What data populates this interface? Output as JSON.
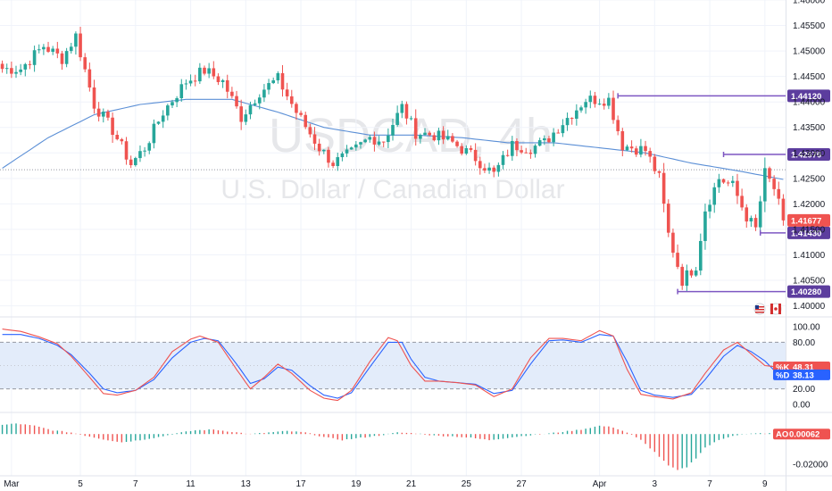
{
  "watermark": {
    "symbol": "USDCAD, 4h",
    "description": "U.S. Dollar / Canadian Dollar"
  },
  "colors": {
    "up": "#26a69a",
    "down": "#ef5350",
    "ma": "#5b8fd6",
    "level": "#7e57c2",
    "k": "#ef5350",
    "d": "#2962ff"
  },
  "chart_data": {
    "type": "candlestick",
    "price_axis": {
      "min": 1.398,
      "max": 1.46,
      "ticks": [
        "1.46000",
        "1.45500",
        "1.45000",
        "1.44500",
        "1.44000",
        "1.43500",
        "1.43000",
        "1.42500",
        "1.42000",
        "1.41500",
        "1.41000",
        "1.40500",
        "1.40000"
      ]
    },
    "x_axis": {
      "ticks": [
        {
          "label": "Mar",
          "bar": 2
        },
        {
          "label": "5",
          "bar": 17
        },
        {
          "label": "7",
          "bar": 29
        },
        {
          "label": "11",
          "bar": 41
        },
        {
          "label": "13",
          "bar": 53
        },
        {
          "label": "17",
          "bar": 65
        },
        {
          "label": "19",
          "bar": 77
        },
        {
          "label": "21",
          "bar": 89
        },
        {
          "label": "25",
          "bar": 101
        },
        {
          "label": "27",
          "bar": 113
        },
        {
          "label": "Apr",
          "bar": 130
        },
        {
          "label": "3",
          "bar": 142
        },
        {
          "label": "7",
          "bar": 154
        },
        {
          "label": "9",
          "bar": 166
        }
      ]
    },
    "levels": [
      {
        "label": "1.44120",
        "value": 1.4412,
        "from_bar": 134
      },
      {
        "label": "1.42970",
        "value": 1.4297,
        "from_bar": 157
      },
      {
        "label": "1.41430",
        "value": 1.4143,
        "from_bar": 165
      },
      {
        "label": "1.40280",
        "value": 1.4028,
        "from_bar": 147
      }
    ],
    "current_price": {
      "label": "1.41677",
      "value": 1.41677
    },
    "reference_line": 1.4267,
    "anchors": [
      [
        0,
        1.4465
      ],
      [
        4,
        1.4465
      ],
      [
        9,
        1.451
      ],
      [
        13,
        1.4485
      ],
      [
        16,
        1.453
      ],
      [
        20,
        1.4395
      ],
      [
        24,
        1.4345
      ],
      [
        28,
        1.4278
      ],
      [
        31,
        1.431
      ],
      [
        35,
        1.438
      ],
      [
        40,
        1.444
      ],
      [
        44,
        1.4462
      ],
      [
        48,
        1.444
      ],
      [
        52,
        1.437
      ],
      [
        56,
        1.442
      ],
      [
        60,
        1.4445
      ],
      [
        64,
        1.438
      ],
      [
        69,
        1.431
      ],
      [
        72,
        1.428
      ],
      [
        76,
        1.43
      ],
      [
        80,
        1.433
      ],
      [
        83,
        1.4325
      ],
      [
        87,
        1.439
      ],
      [
        90,
        1.434
      ],
      [
        94,
        1.4335
      ],
      [
        98,
        1.432
      ],
      [
        103,
        1.429
      ],
      [
        107,
        1.4258
      ],
      [
        111,
        1.4315
      ],
      [
        115,
        1.431
      ],
      [
        118,
        1.432
      ],
      [
        122,
        1.436
      ],
      [
        127,
        1.4405
      ],
      [
        132,
        1.4405
      ],
      [
        135,
        1.4315
      ],
      [
        140,
        1.4305
      ],
      [
        143,
        1.425
      ],
      [
        145,
        1.414
      ],
      [
        148,
        1.405
      ],
      [
        151,
        1.408
      ],
      [
        153,
        1.419
      ],
      [
        156,
        1.425
      ],
      [
        159,
        1.4235
      ],
      [
        162,
        1.4175
      ],
      [
        164,
        1.415
      ],
      [
        166,
        1.426
      ],
      [
        168,
        1.423
      ],
      [
        170,
        1.4167
      ]
    ],
    "ma_anchors": [
      [
        0,
        1.427
      ],
      [
        10,
        1.433
      ],
      [
        20,
        1.4375
      ],
      [
        30,
        1.4395
      ],
      [
        40,
        1.4405
      ],
      [
        50,
        1.4405
      ],
      [
        60,
        1.438
      ],
      [
        70,
        1.435
      ],
      [
        80,
        1.4335
      ],
      [
        90,
        1.4335
      ],
      [
        100,
        1.433
      ],
      [
        110,
        1.432
      ],
      [
        120,
        1.432
      ],
      [
        130,
        1.431
      ],
      [
        140,
        1.43
      ],
      [
        150,
        1.428
      ],
      [
        160,
        1.4265
      ],
      [
        170,
        1.4248
      ]
    ],
    "stochastic": {
      "k_label": "%K",
      "k_value": "48.31",
      "d_label": "%D",
      "d_value": "38.13",
      "ticks": [
        "100.00",
        "80.00",
        "20.00",
        "0.00"
      ],
      "bands": [
        80,
        20
      ],
      "k_anchors": [
        [
          0,
          97
        ],
        [
          4,
          94
        ],
        [
          8,
          87
        ],
        [
          12,
          78
        ],
        [
          15,
          62
        ],
        [
          19,
          35
        ],
        [
          22,
          14
        ],
        [
          25,
          12
        ],
        [
          29,
          18
        ],
        [
          33,
          35
        ],
        [
          37,
          68
        ],
        [
          41,
          84
        ],
        [
          43,
          88
        ],
        [
          47,
          80
        ],
        [
          51,
          45
        ],
        [
          54,
          20
        ],
        [
          57,
          35
        ],
        [
          60,
          52
        ],
        [
          63,
          40
        ],
        [
          67,
          18
        ],
        [
          70,
          8
        ],
        [
          73,
          5
        ],
        [
          76,
          18
        ],
        [
          80,
          55
        ],
        [
          84,
          86
        ],
        [
          86,
          82
        ],
        [
          89,
          50
        ],
        [
          92,
          30
        ],
        [
          95,
          30
        ],
        [
          99,
          28
        ],
        [
          103,
          25
        ],
        [
          107,
          10
        ],
        [
          111,
          20
        ],
        [
          115,
          60
        ],
        [
          119,
          85
        ],
        [
          122,
          85
        ],
        [
          126,
          82
        ],
        [
          130,
          95
        ],
        [
          133,
          88
        ],
        [
          136,
          45
        ],
        [
          139,
          13
        ],
        [
          142,
          10
        ],
        [
          146,
          7
        ],
        [
          150,
          15
        ],
        [
          153,
          40
        ],
        [
          157,
          70
        ],
        [
          160,
          80
        ],
        [
          163,
          65
        ],
        [
          166,
          50
        ],
        [
          169,
          48
        ]
      ],
      "d_anchors": [
        [
          0,
          90
        ],
        [
          4,
          90
        ],
        [
          8,
          85
        ],
        [
          12,
          76
        ],
        [
          15,
          64
        ],
        [
          19,
          40
        ],
        [
          22,
          20
        ],
        [
          25,
          15
        ],
        [
          29,
          18
        ],
        [
          33,
          32
        ],
        [
          37,
          60
        ],
        [
          41,
          80
        ],
        [
          44,
          85
        ],
        [
          47,
          82
        ],
        [
          51,
          52
        ],
        [
          54,
          27
        ],
        [
          57,
          33
        ],
        [
          60,
          48
        ],
        [
          63,
          44
        ],
        [
          67,
          24
        ],
        [
          70,
          12
        ],
        [
          73,
          8
        ],
        [
          76,
          15
        ],
        [
          80,
          48
        ],
        [
          84,
          80
        ],
        [
          87,
          80
        ],
        [
          89,
          58
        ],
        [
          92,
          35
        ],
        [
          95,
          30
        ],
        [
          99,
          28
        ],
        [
          103,
          26
        ],
        [
          107,
          14
        ],
        [
          111,
          18
        ],
        [
          115,
          52
        ],
        [
          119,
          82
        ],
        [
          122,
          83
        ],
        [
          126,
          80
        ],
        [
          130,
          90
        ],
        [
          133,
          88
        ],
        [
          136,
          55
        ],
        [
          139,
          18
        ],
        [
          142,
          12
        ],
        [
          146,
          9
        ],
        [
          150,
          13
        ],
        [
          153,
          32
        ],
        [
          157,
          62
        ],
        [
          160,
          76
        ],
        [
          163,
          68
        ],
        [
          166,
          56
        ],
        [
          169,
          38
        ]
      ]
    },
    "awesome_oscillator": {
      "label": "AO",
      "value": "0.00062",
      "ticks": [
        "0.00",
        "-0.02000"
      ],
      "min": -0.026,
      "max": 0.012,
      "anchors": [
        [
          0,
          0.006
        ],
        [
          3,
          0.007
        ],
        [
          7,
          0.0055
        ],
        [
          11,
          0.0025
        ],
        [
          15,
          0.001
        ],
        [
          18,
          -0.001
        ],
        [
          22,
          -0.0035
        ],
        [
          26,
          -0.0055
        ],
        [
          30,
          -0.004
        ],
        [
          34,
          -0.002
        ],
        [
          38,
          0.0005
        ],
        [
          42,
          0.0025
        ],
        [
          46,
          0.003
        ],
        [
          50,
          0.0015
        ],
        [
          54,
          0.0
        ],
        [
          58,
          0.001
        ],
        [
          62,
          0.002
        ],
        [
          66,
          0.001
        ],
        [
          70,
          -0.002
        ],
        [
          74,
          -0.004
        ],
        [
          78,
          -0.0025
        ],
        [
          82,
          -0.001
        ],
        [
          86,
          0.001
        ],
        [
          90,
          0.0005
        ],
        [
          94,
          -0.001
        ],
        [
          98,
          -0.0015
        ],
        [
          102,
          -0.0025
        ],
        [
          106,
          -0.004
        ],
        [
          110,
          -0.0025
        ],
        [
          114,
          -0.001
        ],
        [
          118,
          0.0
        ],
        [
          122,
          0.0015
        ],
        [
          126,
          0.003
        ],
        [
          130,
          0.0055
        ],
        [
          133,
          0.0045
        ],
        [
          136,
          0.001
        ],
        [
          139,
          -0.004
        ],
        [
          142,
          -0.012
        ],
        [
          145,
          -0.021
        ],
        [
          147,
          -0.024
        ],
        [
          149,
          -0.022
        ],
        [
          151,
          -0.016
        ],
        [
          153,
          -0.009
        ],
        [
          156,
          -0.004
        ],
        [
          159,
          -0.001
        ],
        [
          162,
          0.0
        ],
        [
          165,
          0.0005
        ],
        [
          168,
          0.0004
        ],
        [
          170,
          0.0006
        ]
      ]
    }
  }
}
